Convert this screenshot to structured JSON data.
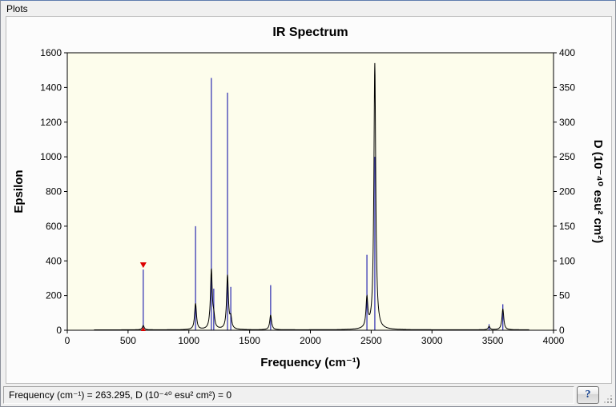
{
  "window": {
    "title": "Plots"
  },
  "status_bar": {
    "text": "Frequency (cm⁻¹) = 263.295, D (10⁻⁴⁰ esu² cm²) = 0",
    "help_label": "?"
  },
  "chart_data": {
    "type": "line",
    "title": "IR Spectrum",
    "xlabel": "Frequency (cm⁻¹)",
    "ylabel_left": "Epsilon",
    "ylabel_right": "D (10⁻⁴⁰ esu² cm²)",
    "xlim": [
      0,
      4000
    ],
    "ylim_left": [
      0,
      1600
    ],
    "ylim_right": [
      0,
      400
    ],
    "x_ticks": [
      0,
      500,
      1000,
      1500,
      2000,
      2500,
      3000,
      3500,
      4000
    ],
    "y_ticks_left": [
      0,
      200,
      400,
      600,
      800,
      1000,
      1200,
      1400,
      1600
    ],
    "y_ticks_right": [
      0,
      50,
      100,
      150,
      200,
      250,
      300,
      350,
      400
    ],
    "plot_bg": "#fdfdec",
    "impulse_color": "#2b2bb0",
    "curve_color": "#000000",
    "marker_color": "#dd0000",
    "grid": false,
    "legend": "none",
    "impulses": [
      {
        "x": 625,
        "epsilon": 350
      },
      {
        "x": 1055,
        "epsilon": 600
      },
      {
        "x": 1185,
        "epsilon": 1455
      },
      {
        "x": 1205,
        "epsilon": 240
      },
      {
        "x": 1318,
        "epsilon": 1370
      },
      {
        "x": 1345,
        "epsilon": 250
      },
      {
        "x": 1673,
        "epsilon": 260
      },
      {
        "x": 2465,
        "epsilon": 435
      },
      {
        "x": 2530,
        "epsilon": 1000
      },
      {
        "x": 3470,
        "epsilon": 35
      },
      {
        "x": 3583,
        "epsilon": 150
      }
    ],
    "curve_peaks": [
      {
        "x": 625,
        "epsilon": 25
      },
      {
        "x": 1055,
        "epsilon": 150
      },
      {
        "x": 1185,
        "epsilon": 340
      },
      {
        "x": 1205,
        "epsilon": 60
      },
      {
        "x": 1318,
        "epsilon": 310
      },
      {
        "x": 1345,
        "epsilon": 60
      },
      {
        "x": 1673,
        "epsilon": 85
      },
      {
        "x": 2465,
        "epsilon": 170
      },
      {
        "x": 2530,
        "epsilon": 1535
      },
      {
        "x": 3470,
        "epsilon": 20
      },
      {
        "x": 3583,
        "epsilon": 120
      }
    ],
    "curve_range": [
      220,
      3800
    ],
    "lorentz_gamma": 9,
    "selected_marker": {
      "x": 625,
      "epsilon": 350
    }
  }
}
